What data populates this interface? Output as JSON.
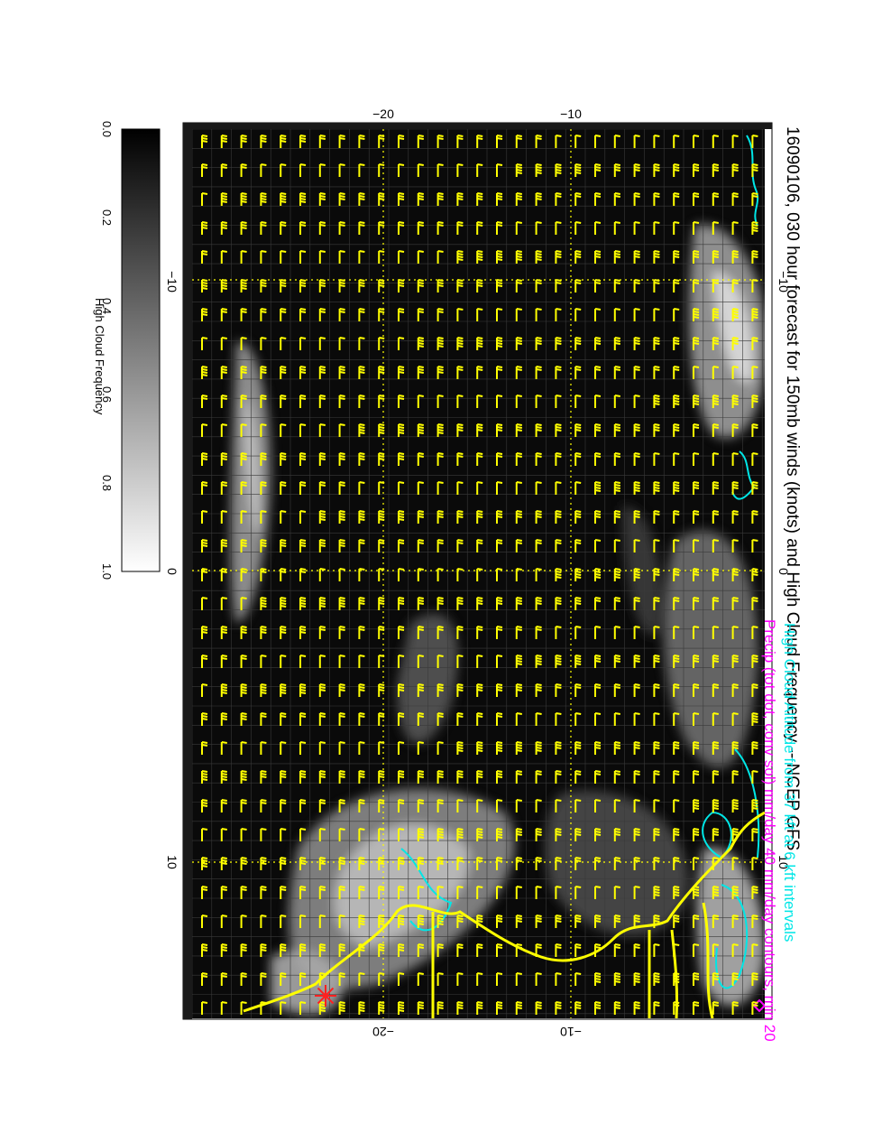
{
  "title": "16090106, 030 hour forecast for 150mb winds (knots) and High Cloud Frequency -- NCEP GFS",
  "footnotes": {
    "cloud_altitude": "High Cloud Altitude from 37 kft at 6 kft intervals",
    "precip": "Precip (tot dot, conv sol) mm/day 40 mm/day contours, min 20"
  },
  "colorbar": {
    "label": "High Cloud Frequency",
    "ticks": [
      "0.0",
      "0.2",
      "0.4",
      "0.6",
      "0.8",
      "1.0"
    ],
    "range": [
      0.0,
      1.0
    ],
    "colors": [
      "#000000",
      "#ffffff"
    ]
  },
  "axes": {
    "top_labels": [
      "−10",
      "0",
      "10"
    ],
    "bottom_labels": [
      "−10",
      "0",
      "10"
    ],
    "left_labels": [
      "−20",
      "−10"
    ],
    "right_labels": [
      "−20",
      "−10"
    ]
  },
  "colors": {
    "map_background": "#0a0a0a",
    "wind_barbs": "#ffff00",
    "coastline": "#ffff00",
    "cloud_altitude_contours": "#00e6e6",
    "precip_contours": "#ff00ff",
    "station_marker": "#ff2020"
  },
  "markers": {
    "station_icon": "asterisk-star-icon"
  }
}
